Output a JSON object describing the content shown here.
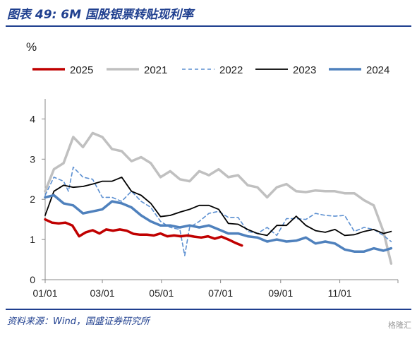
{
  "header": {
    "title": "图表 49:  6M 国股银票转贴现利率"
  },
  "footer": {
    "source": "资料来源：Wind，国盛证券研究所",
    "watermark": "格隆汇"
  },
  "chart_data": {
    "type": "line",
    "title": "",
    "ylabel": "%",
    "xlabel": "",
    "x_tick_labels": [
      "01/01",
      "03/01",
      "05/01",
      "07/01",
      "09/01",
      "11/01"
    ],
    "y_tick_labels": [
      "0",
      "1",
      "2",
      "3",
      "4"
    ],
    "ylim": [
      0,
      4.5
    ],
    "xlim": [
      1,
      365
    ],
    "legend_position": "top",
    "series": [
      {
        "name": "2025",
        "color": "#c00000",
        "dash": "solid",
        "width": 3.5,
        "x": [
          1,
          8,
          15,
          22,
          29,
          36,
          43,
          50,
          57,
          64,
          71,
          78,
          85,
          92,
          99,
          106,
          113,
          120,
          127,
          134,
          141,
          148,
          155,
          162,
          169,
          176,
          183,
          190,
          197,
          204
        ],
        "y": [
          1.5,
          1.42,
          1.4,
          1.42,
          1.35,
          1.08,
          1.18,
          1.23,
          1.15,
          1.25,
          1.22,
          1.25,
          1.22,
          1.14,
          1.12,
          1.12,
          1.1,
          1.15,
          1.08,
          1.1,
          1.08,
          1.1,
          1.07,
          1.05,
          1.08,
          1.02,
          1.07,
          1.0,
          0.92,
          0.85
        ]
      },
      {
        "name": "2021",
        "color": "#c0c0c0",
        "dash": "solid",
        "width": 3.5,
        "x": [
          1,
          10,
          20,
          30,
          40,
          50,
          60,
          70,
          80,
          90,
          100,
          110,
          120,
          130,
          140,
          150,
          160,
          170,
          180,
          190,
          200,
          210,
          220,
          230,
          240,
          250,
          260,
          270,
          280,
          290,
          300,
          310,
          320,
          330,
          340,
          350,
          358
        ],
        "y": [
          2.2,
          2.75,
          2.9,
          3.55,
          3.3,
          3.65,
          3.55,
          3.25,
          3.2,
          2.95,
          3.05,
          2.9,
          2.55,
          2.7,
          2.5,
          2.45,
          2.7,
          2.6,
          2.75,
          2.55,
          2.6,
          2.35,
          2.3,
          2.05,
          2.3,
          2.38,
          2.2,
          2.18,
          2.22,
          2.2,
          2.2,
          2.15,
          2.15,
          1.98,
          1.85,
          1.2,
          0.4
        ]
      },
      {
        "name": "2022",
        "color": "#5b8fd1",
        "dash": "5,4",
        "width": 1.6,
        "x": [
          1,
          10,
          20,
          25,
          30,
          40,
          50,
          60,
          70,
          80,
          90,
          100,
          110,
          120,
          130,
          140,
          145,
          150,
          160,
          170,
          180,
          190,
          200,
          210,
          220,
          230,
          240,
          250,
          260,
          270,
          280,
          290,
          300,
          310,
          320,
          330,
          340,
          350,
          358
        ],
        "y": [
          2.1,
          2.55,
          2.45,
          2.2,
          2.8,
          2.55,
          2.5,
          2.05,
          2.05,
          1.95,
          2.2,
          1.95,
          1.8,
          1.45,
          1.3,
          1.25,
          0.6,
          1.3,
          1.45,
          1.65,
          1.7,
          1.55,
          1.55,
          1.2,
          1.15,
          1.3,
          1.1,
          1.52,
          1.52,
          1.5,
          1.65,
          1.6,
          1.58,
          1.6,
          1.2,
          1.3,
          1.25,
          1.1,
          0.95
        ]
      },
      {
        "name": "2023",
        "color": "#000000",
        "dash": "solid",
        "width": 1.8,
        "x": [
          1,
          10,
          20,
          30,
          40,
          50,
          60,
          70,
          80,
          90,
          100,
          110,
          120,
          130,
          140,
          150,
          160,
          170,
          180,
          190,
          200,
          210,
          220,
          230,
          240,
          250,
          260,
          270,
          280,
          290,
          300,
          310,
          320,
          330,
          340,
          350,
          358
        ],
        "y": [
          1.6,
          2.2,
          2.35,
          2.3,
          2.32,
          2.38,
          2.45,
          2.45,
          2.55,
          2.2,
          2.1,
          1.9,
          1.57,
          1.6,
          1.68,
          1.75,
          1.85,
          1.85,
          1.75,
          1.4,
          1.38,
          1.25,
          1.15,
          1.1,
          1.35,
          1.35,
          1.58,
          1.35,
          1.22,
          1.18,
          1.25,
          1.1,
          1.12,
          1.2,
          1.25,
          1.15,
          1.2
        ]
      },
      {
        "name": "2024",
        "color": "#4f81bd",
        "dash": "solid",
        "width": 3.5,
        "x": [
          1,
          10,
          20,
          30,
          40,
          50,
          60,
          70,
          80,
          90,
          100,
          110,
          120,
          130,
          140,
          150,
          160,
          170,
          180,
          190,
          200,
          210,
          220,
          230,
          240,
          250,
          260,
          270,
          280,
          290,
          300,
          310,
          320,
          330,
          340,
          350,
          358
        ],
        "y": [
          2.05,
          2.1,
          1.9,
          1.85,
          1.65,
          1.7,
          1.75,
          1.95,
          1.9,
          1.8,
          1.6,
          1.45,
          1.35,
          1.35,
          1.3,
          1.35,
          1.3,
          1.35,
          1.25,
          1.15,
          1.15,
          1.08,
          1.05,
          0.95,
          1.0,
          0.95,
          0.97,
          1.05,
          0.9,
          0.95,
          0.9,
          0.75,
          0.7,
          0.7,
          0.78,
          0.72,
          0.78
        ]
      }
    ]
  }
}
